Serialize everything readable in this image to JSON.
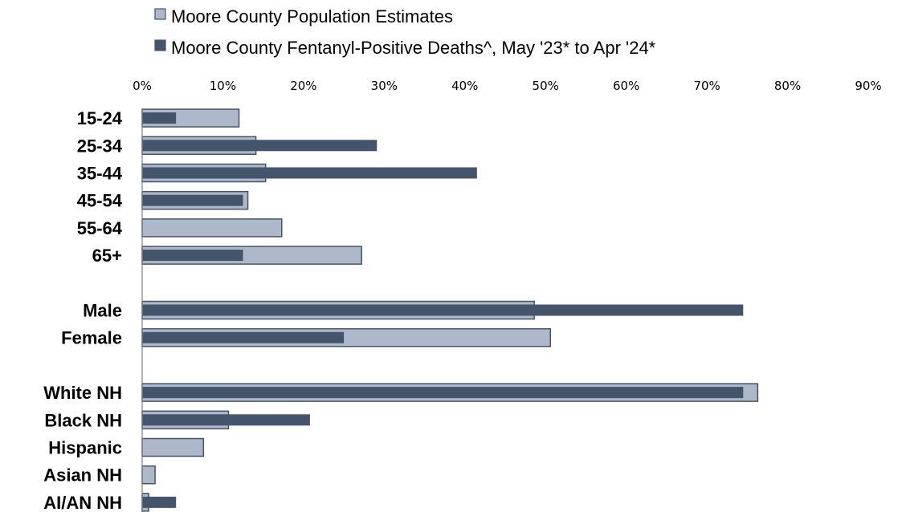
{
  "chart_data": {
    "type": "bar",
    "orientation": "horizontal",
    "xlim": [
      0,
      90
    ],
    "x_unit": "%",
    "x_ticks": [
      "0%",
      "10%",
      "20%",
      "30%",
      "40%",
      "50%",
      "60%",
      "70%",
      "80%",
      "90%"
    ],
    "x_tick_values": [
      0,
      10,
      20,
      30,
      40,
      50,
      60,
      70,
      80,
      90
    ],
    "xaxis_position": "top",
    "grid": false,
    "legend_position": "top",
    "categories": [
      "15-24",
      "25-34",
      "35-44",
      "45-54",
      "55-64",
      "65+",
      "",
      "Male",
      "Female",
      "",
      "White NH",
      "Black NH",
      "Hispanic",
      "Asian NH",
      "AI/AN NH"
    ],
    "series": [
      {
        "name": "Moore County Population Estimates",
        "color": "#adb9ca",
        "border": "#44546a",
        "values": [
          12.0,
          14.1,
          15.3,
          13.1,
          17.3,
          27.2,
          null,
          48.6,
          50.6,
          null,
          76.3,
          10.7,
          7.6,
          1.6,
          0.8
        ]
      },
      {
        "name": "Moore County Fentanyl-Positive Deaths^, May '23* to Apr '24*",
        "color": "#44546a",
        "values": [
          4.2,
          29.1,
          41.5,
          12.5,
          0,
          12.5,
          null,
          74.5,
          25.0,
          null,
          74.5,
          20.8,
          0,
          0,
          4.2
        ]
      }
    ]
  }
}
